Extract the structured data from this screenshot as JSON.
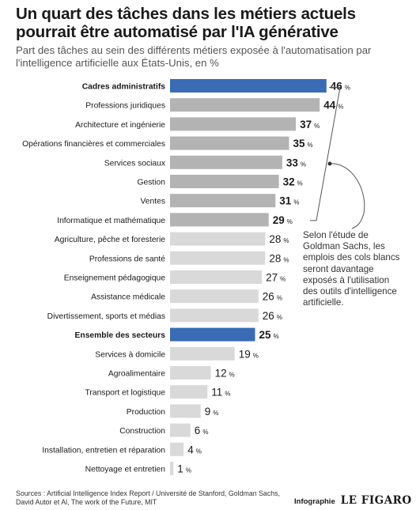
{
  "header": {
    "title": "Un quart des tâches dans les métiers actuels pourrait être automatisé par l'IA générative",
    "subtitle": "Part des tâches au sein des différents métiers exposée à l'automatisation par l'intelligence artificielle aux États-Unis, en %"
  },
  "annotation": {
    "text": "Selon l'étude de Goldman Sachs, les emplois des cols blancs seront davantage exposés à l'utilisation des outils d'intelligence artificielle."
  },
  "footer": {
    "sources": "Sources : Artificial Intelligence Index Report / Université de Stanford, Goldman Sachs, David Autor et Al, The work of the Future, MIT",
    "infographie": "Infographie",
    "logo": "LE FIGARO"
  },
  "colors": {
    "highlight": "#3a6bb5",
    "white_collar": "#b3b3b3",
    "other": "#d9d9d9",
    "text": "#1a1a1a"
  },
  "chart_data": {
    "type": "bar",
    "orientation": "horizontal",
    "unit": "%",
    "xlim": [
      0,
      46
    ],
    "grid": false,
    "categories": [
      "Cadres administratifs",
      "Professions juridiques",
      "Architecture et ingénierie",
      "Opérations financières et commerciales",
      "Services sociaux",
      "Gestion",
      "Ventes",
      "Informatique et mathématique",
      "Agriculture, pêche et foresterie",
      "Professions de santé",
      "Enseignement pédagogique",
      "Assistance médicale",
      "Divertissement, sports et médias",
      "Ensemble des secteurs",
      "Services à domicile",
      "Agroalimentaire",
      "Transport et logistique",
      "Production",
      "Construction",
      "Installation, entretien et réparation",
      "Nettoyage et entretien"
    ],
    "values": [
      46,
      44,
      37,
      35,
      33,
      32,
      31,
      29,
      28,
      28,
      27,
      26,
      26,
      25,
      19,
      12,
      11,
      9,
      6,
      4,
      1
    ],
    "groups": [
      "highlight",
      "white_collar",
      "white_collar",
      "white_collar",
      "white_collar",
      "white_collar",
      "white_collar",
      "white_collar",
      "other",
      "other",
      "other",
      "other",
      "other",
      "highlight",
      "other",
      "other",
      "other",
      "other",
      "other",
      "other",
      "other"
    ]
  }
}
